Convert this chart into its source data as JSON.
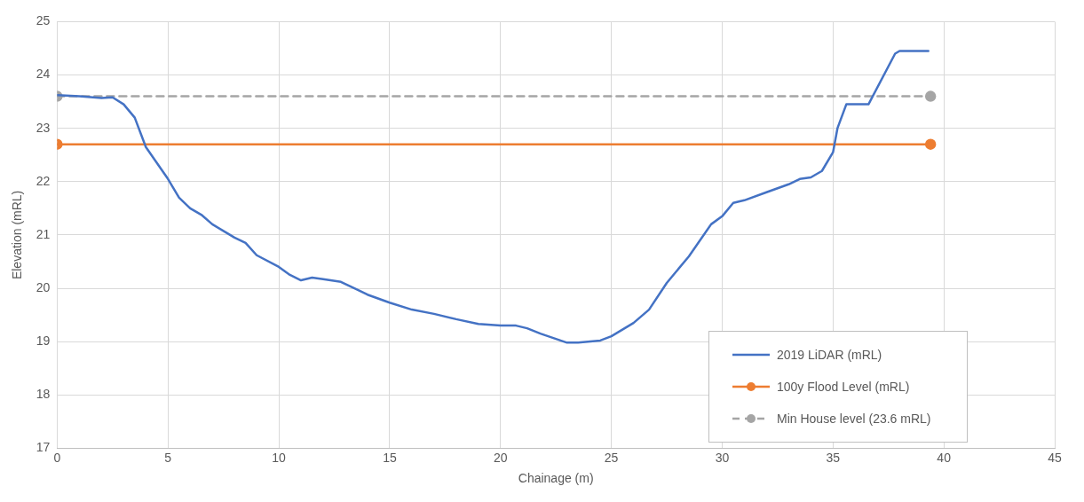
{
  "chart_data": {
    "type": "line",
    "xlabel": "Chainage (m)",
    "ylabel": "Elevation (mRL)",
    "xlim": [
      0,
      45
    ],
    "xticks": [
      0,
      5,
      10,
      15,
      20,
      25,
      30,
      35,
      40,
      45
    ],
    "ylim": [
      17,
      25
    ],
    "yticks": [
      17,
      18,
      19,
      20,
      21,
      22,
      23,
      24,
      25
    ],
    "grid": true,
    "legend": "bottom right",
    "series": [
      {
        "name": "2019 LiDAR (mRL)",
        "color": "#4472c4",
        "marker": "none",
        "line_style": "solid",
        "x": [
          0,
          1,
          2,
          2.5,
          3,
          3.5,
          4,
          5,
          5.5,
          6,
          6.5,
          7,
          8,
          8.5,
          9,
          10,
          10.5,
          11,
          11.5,
          12,
          12.8,
          13.5,
          14,
          15,
          16,
          17,
          18,
          19,
          20,
          20.7,
          21.2,
          21.8,
          22.5,
          23,
          23.5,
          24.5,
          25,
          26,
          26.7,
          27.5,
          28.5,
          29.5,
          30,
          30.5,
          31,
          32,
          33,
          33.5,
          34,
          34.5,
          35,
          35.2,
          35.6,
          36.6,
          37.8,
          38,
          39.3
        ],
        "values": [
          23.62,
          23.6,
          23.57,
          23.58,
          23.45,
          23.2,
          22.65,
          22.05,
          21.7,
          21.5,
          21.38,
          21.2,
          20.95,
          20.85,
          20.62,
          20.4,
          20.25,
          20.15,
          20.2,
          20.17,
          20.12,
          19.98,
          19.88,
          19.73,
          19.6,
          19.52,
          19.42,
          19.33,
          19.3,
          19.3,
          19.25,
          19.15,
          19.05,
          18.98,
          18.98,
          19.02,
          19.1,
          19.35,
          19.6,
          20.1,
          20.6,
          21.2,
          21.35,
          21.6,
          21.65,
          21.8,
          21.95,
          22.05,
          22.08,
          22.2,
          22.55,
          23,
          23.45,
          23.45,
          24.4,
          24.45,
          24.45
        ]
      },
      {
        "name": "100y Flood Level (mRL)",
        "color": "#ed7d31",
        "marker": "circle",
        "line_style": "solid",
        "x": [
          0,
          39.4
        ],
        "values": [
          22.7,
          22.7
        ]
      },
      {
        "name": "Min House level (23.6 mRL)",
        "color": "#a5a5a5",
        "marker": "circle",
        "line_style": "dashed",
        "x": [
          0,
          39.4
        ],
        "values": [
          23.6,
          23.6
        ]
      }
    ]
  }
}
